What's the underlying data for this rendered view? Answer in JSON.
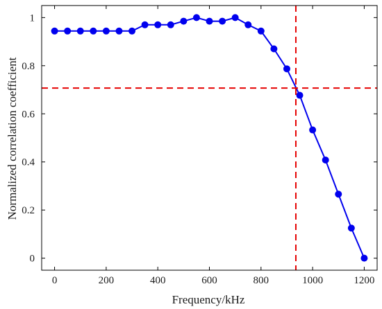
{
  "chart_data": {
    "type": "line",
    "title": "",
    "xlabel": "Frequency/kHz",
    "ylabel": "Normalized correlation coefficient",
    "xlim": [
      -50,
      1250
    ],
    "ylim": [
      -0.05,
      1.05
    ],
    "x_ticks": [
      0,
      200,
      400,
      600,
      800,
      1000,
      1200
    ],
    "y_ticks": [
      0,
      0.2,
      0.4,
      0.6,
      0.8,
      1
    ],
    "grid": false,
    "legend": "none",
    "series": [
      {
        "color": "#0000ee",
        "marker": "circle",
        "x": [
          0,
          50,
          100,
          150,
          200,
          250,
          300,
          350,
          400,
          450,
          500,
          550,
          600,
          650,
          700,
          750,
          800,
          850,
          900,
          950,
          1000,
          1050,
          1100,
          1150,
          1200
        ],
        "y": [
          0.944,
          0.944,
          0.944,
          0.944,
          0.944,
          0.944,
          0.944,
          0.97,
          0.97,
          0.97,
          0.985,
          1.0,
          0.985,
          0.985,
          1.0,
          0.97,
          0.944,
          0.87,
          0.787,
          0.677,
          0.533,
          0.408,
          0.266,
          0.125,
          0.0
        ]
      }
    ],
    "reference_lines": [
      {
        "orientation": "horizontal",
        "value": 0.707,
        "color": "#e60000",
        "style": "dashed"
      },
      {
        "orientation": "vertical",
        "value": 935,
        "color": "#e60000",
        "style": "dashed"
      }
    ]
  }
}
